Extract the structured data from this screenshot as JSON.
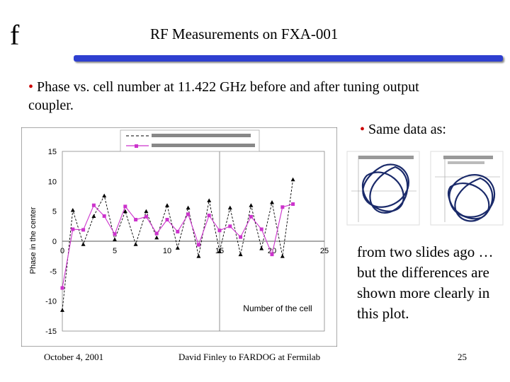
{
  "logo": "f",
  "title": "RF Measurements on FXA-001",
  "bullet1": {
    "marker": "•",
    "text": "Phase vs. cell number at 11.422 GHz before and after tuning output coupler."
  },
  "bullet2": {
    "marker": "•",
    "text": "Same data as:"
  },
  "side_text": "from two slides ago … but the differences are shown more clearly in this plot.",
  "footer": {
    "date": "October 4, 2001",
    "author": "David Finley to FARDOG at Fermilab",
    "page": "25"
  },
  "colors": {
    "title_bar": "#2e3fd0",
    "bullet": "#cc0000",
    "series_before": "#000000",
    "series_after": "#cc33cc",
    "thumb_curve": "#1a2a6a"
  },
  "chart_data": {
    "type": "line",
    "ylabel": "Phase in the center",
    "xlabel": "Number of the cell",
    "xlim": [
      0,
      25
    ],
    "ylim": [
      -15,
      15
    ],
    "xticks": [
      0,
      5,
      10,
      15,
      20,
      25
    ],
    "yticks": [
      15,
      10,
      5,
      0,
      -5,
      -10,
      -15
    ],
    "x": [
      0,
      1,
      2,
      3,
      4,
      5,
      6,
      7,
      8,
      9,
      10,
      11,
      12,
      13,
      14,
      15,
      16,
      17,
      18,
      19,
      20,
      21,
      22
    ],
    "series": [
      {
        "name": "",
        "style": "dashed",
        "marker": "triangle",
        "values": [
          -11.5,
          5.2,
          -0.5,
          4.2,
          7.6,
          0.3,
          5,
          -0.5,
          5,
          0.6,
          6,
          -1.1,
          5.6,
          -2.5,
          6.8,
          -1.7,
          5.6,
          -2.2,
          6,
          -1.2,
          6.5,
          -2.5,
          10.3
        ]
      },
      {
        "name": "",
        "style": "solid",
        "marker": "square",
        "values": [
          -7.8,
          2,
          1.9,
          6,
          4.2,
          1.2,
          5.8,
          3.6,
          4.1,
          1.3,
          3.6,
          1.6,
          4.5,
          -0.6,
          4.3,
          1.8,
          2.5,
          0.7,
          4.1,
          2,
          -2.2,
          5.7,
          6.2
        ]
      }
    ],
    "grid": {
      "x": true,
      "y": false
    },
    "legend": "top"
  }
}
